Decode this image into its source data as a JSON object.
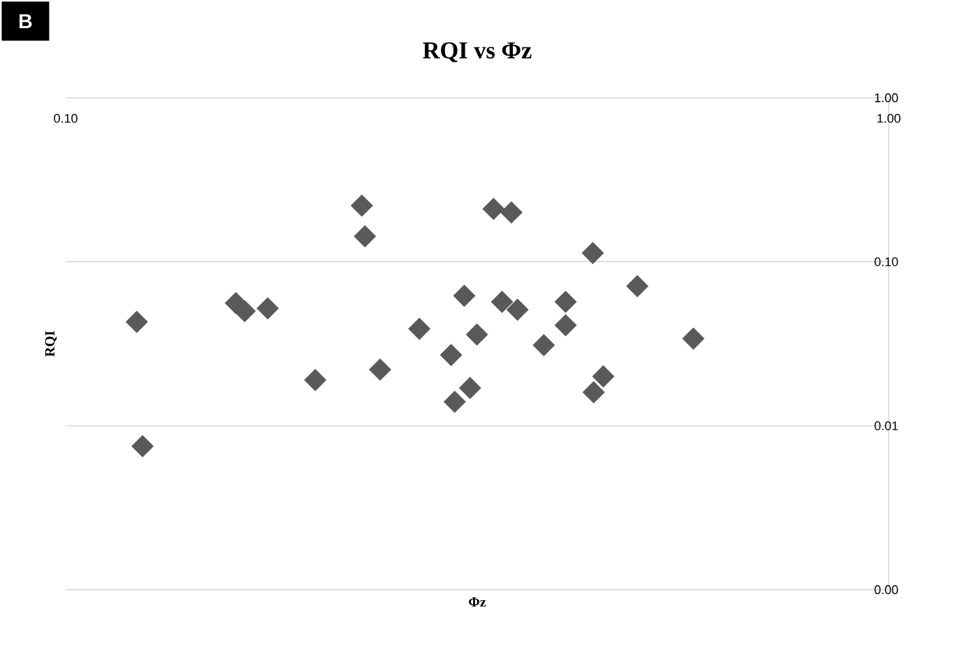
{
  "chart_data": {
    "type": "scatter",
    "title": "RQI vs Φz",
    "xlabel": "Φz",
    "ylabel": "RQI",
    "annotations": [
      "B"
    ],
    "log": "xy",
    "grid": "y",
    "marker": "diamond",
    "color": "#595959",
    "xlim": [
      0.1,
      1
    ],
    "ylim": [
      0.001,
      1
    ],
    "xticks": [
      {
        "value": 0.1,
        "label": "0.10"
      },
      {
        "value": 1,
        "label": "1.00"
      }
    ],
    "yticks": [
      {
        "value": 0.001,
        "label": "0.00"
      },
      {
        "value": 0.01,
        "label": "0.01"
      },
      {
        "value": 0.1,
        "label": "0.10"
      },
      {
        "value": 1,
        "label": "1.00"
      }
    ],
    "x": [
      0.122,
      0.124,
      0.161,
      0.165,
      0.176,
      0.201,
      0.229,
      0.231,
      0.241,
      0.269,
      0.294,
      0.297,
      0.305,
      0.31,
      0.316,
      0.331,
      0.339,
      0.348,
      0.354,
      0.381,
      0.405,
      0.405,
      0.437,
      0.438,
      0.45,
      0.495,
      0.579
    ],
    "values": [
      0.043,
      0.0075,
      0.056,
      0.05,
      0.052,
      0.019,
      0.22,
      0.143,
      0.022,
      0.039,
      0.027,
      0.014,
      0.062,
      0.017,
      0.036,
      0.21,
      0.057,
      0.2,
      0.051,
      0.031,
      0.057,
      0.041,
      0.113,
      0.016,
      0.02,
      0.071,
      0.034
    ]
  }
}
